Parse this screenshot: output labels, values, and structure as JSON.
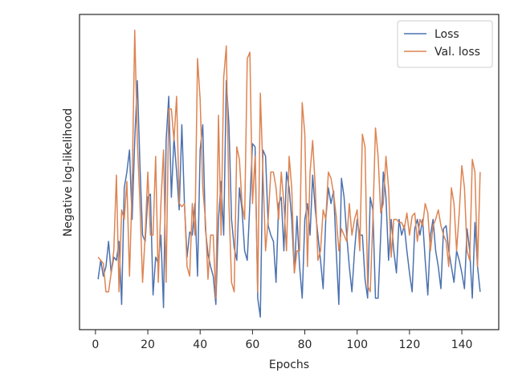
{
  "chart_data": {
    "type": "line",
    "xlabel": "Epochs",
    "ylabel": "Negative log-likelihood",
    "x": [
      1,
      2,
      3,
      4,
      5,
      6,
      7,
      8,
      9,
      10,
      11,
      12,
      13,
      14,
      15,
      16,
      17,
      18,
      19,
      20,
      21,
      22,
      23,
      24,
      25,
      26,
      27,
      28,
      29,
      30,
      31,
      32,
      33,
      34,
      35,
      36,
      37,
      38,
      39,
      40,
      41,
      42,
      43,
      44,
      45,
      46,
      47,
      48,
      49,
      50,
      51,
      52,
      53,
      54,
      55,
      56,
      57,
      58,
      59,
      60,
      61,
      62,
      63,
      64,
      65,
      66,
      67,
      68,
      69,
      70,
      71,
      72,
      73,
      74,
      75,
      76,
      77,
      78,
      79,
      80,
      81,
      82,
      83,
      84,
      85,
      86,
      87,
      88,
      89,
      90,
      91,
      92,
      93,
      94,
      95,
      96,
      97,
      98,
      99,
      100,
      101,
      102,
      103,
      104,
      105,
      106,
      107,
      108,
      109,
      110,
      111,
      112,
      113,
      114,
      115,
      116,
      117,
      118,
      119,
      120,
      121,
      122,
      123,
      124,
      125,
      126,
      127,
      128,
      129,
      130,
      131,
      132,
      133,
      134,
      135,
      136,
      137,
      138,
      139,
      140,
      141,
      142,
      143,
      144,
      145,
      146,
      147
    ],
    "series": [
      {
        "name": "Loss",
        "color": "#4c72b0",
        "values": [
          16,
          22,
          17,
          20,
          28,
          18,
          23,
          22,
          28,
          8,
          45,
          50,
          57,
          35,
          60,
          79,
          52,
          30,
          28,
          42,
          43,
          11,
          23,
          21,
          30,
          7,
          60,
          74,
          42,
          61,
          50,
          38,
          65,
          40,
          23,
          31,
          30,
          40,
          17,
          57,
          65,
          32,
          24,
          20,
          17,
          8,
          35,
          47,
          30,
          79,
          65,
          35,
          26,
          22,
          45,
          38,
          25,
          22,
          40,
          59,
          58,
          10,
          4,
          57,
          55,
          33,
          30,
          28,
          15,
          40,
          42,
          25,
          50,
          45,
          35,
          18,
          36,
          20,
          10,
          35,
          40,
          30,
          49,
          38,
          30,
          22,
          13,
          35,
          45,
          40,
          44,
          25,
          8,
          48,
          42,
          30,
          20,
          12,
          25,
          35,
          30,
          30,
          16,
          10,
          42,
          38,
          10,
          10,
          30,
          50,
          42,
          22,
          35,
          25,
          18,
          35,
          30,
          33,
          25,
          18,
          12,
          32,
          35,
          30,
          35,
          22,
          11,
          30,
          35,
          25,
          20,
          13,
          32,
          33,
          25,
          20,
          15,
          25,
          22,
          18,
          13,
          32,
          25,
          10,
          34,
          20,
          12
        ]
      },
      {
        "name": "Val. loss",
        "color": "#dd8452",
        "values": [
          23,
          22,
          21,
          12,
          12,
          18,
          25,
          49,
          12,
          38,
          35,
          47,
          17,
          45,
          95,
          60,
          40,
          15,
          30,
          50,
          30,
          30,
          55,
          15,
          40,
          57,
          15,
          70,
          70,
          60,
          74,
          40,
          39,
          40,
          20,
          17,
          40,
          30,
          86,
          73,
          45,
          35,
          16,
          30,
          30,
          10,
          68,
          30,
          80,
          90,
          40,
          15,
          12,
          58,
          54,
          40,
          35,
          86,
          88,
          40,
          55,
          12,
          75,
          50,
          25,
          35,
          50,
          50,
          45,
          35,
          50,
          40,
          25,
          55,
          45,
          18,
          25,
          25,
          72,
          62,
          20,
          50,
          60,
          45,
          22,
          25,
          38,
          35,
          50,
          48,
          43,
          36,
          25,
          32,
          30,
          28,
          40,
          30,
          35,
          38,
          25,
          62,
          58,
          14,
          12,
          35,
          64,
          55,
          37,
          40,
          55,
          45,
          23,
          35,
          35,
          34,
          34,
          32,
          37,
          30,
          36,
          37,
          28,
          35,
          33,
          40,
          37,
          25,
          33,
          35,
          38,
          33,
          30,
          28,
          20,
          45,
          40,
          25,
          37,
          52,
          45,
          25,
          22,
          54,
          50,
          20,
          50
        ]
      }
    ],
    "xlim": [
      -6.1,
      154.1
    ],
    "xticks": [
      0,
      20,
      40,
      60,
      80,
      100,
      120,
      140
    ],
    "ylim": [
      0,
      100
    ],
    "yticks": [],
    "legend": "upper right"
  }
}
